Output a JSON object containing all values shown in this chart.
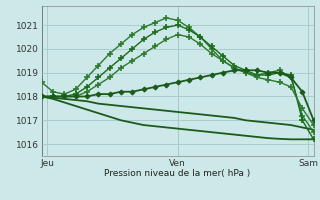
{
  "title": "Pression niveau de la mer( hPa )",
  "ylim": [
    1015.5,
    1021.8
  ],
  "yticks": [
    1016,
    1017,
    1018,
    1019,
    1020,
    1021
  ],
  "bg_color": "#cce8e8",
  "grid_color": "#aacccc",
  "series": [
    {
      "x": [
        0,
        1,
        2,
        3,
        4,
        5,
        6,
        7,
        8,
        9,
        10,
        11,
        12,
        13,
        14,
        15,
        16,
        17,
        18,
        19,
        20,
        21,
        22,
        23,
        24
      ],
      "y": [
        1018.6,
        1018.2,
        1018.1,
        1018.3,
        1018.8,
        1019.3,
        1019.8,
        1020.2,
        1020.6,
        1020.9,
        1021.1,
        1021.3,
        1021.2,
        1020.9,
        1020.5,
        1020.0,
        1019.5,
        1019.2,
        1019.0,
        1018.9,
        1019.0,
        1019.1,
        1018.8,
        1017.2,
        1016.5
      ],
      "marker": "+",
      "lw": 1.0,
      "color": "#2d7a2d",
      "ms": 4,
      "mew": 1.2
    },
    {
      "x": [
        0,
        1,
        2,
        3,
        4,
        5,
        6,
        7,
        8,
        9,
        10,
        11,
        12,
        13,
        14,
        15,
        16,
        17,
        18,
        19,
        20,
        21,
        22,
        23,
        24
      ],
      "y": [
        1018.0,
        1018.0,
        1018.0,
        1018.1,
        1018.4,
        1018.8,
        1019.2,
        1019.6,
        1020.0,
        1020.4,
        1020.7,
        1020.9,
        1021.0,
        1020.8,
        1020.5,
        1020.1,
        1019.7,
        1019.3,
        1019.1,
        1018.9,
        1018.9,
        1019.0,
        1018.9,
        1017.0,
        1016.2
      ],
      "marker": "+",
      "lw": 1.0,
      "color": "#1a6b1a",
      "ms": 4,
      "mew": 1.2
    },
    {
      "x": [
        0,
        1,
        2,
        3,
        4,
        5,
        6,
        7,
        8,
        9,
        10,
        11,
        12,
        13,
        14,
        15,
        16,
        17,
        18,
        19,
        20,
        21,
        22,
        23,
        24
      ],
      "y": [
        1018.0,
        1018.0,
        1018.0,
        1018.0,
        1018.2,
        1018.5,
        1018.8,
        1019.2,
        1019.5,
        1019.8,
        1020.1,
        1020.4,
        1020.6,
        1020.5,
        1020.2,
        1019.8,
        1019.5,
        1019.2,
        1019.0,
        1018.8,
        1018.7,
        1018.6,
        1018.4,
        1017.5,
        1016.8
      ],
      "marker": "+",
      "lw": 1.0,
      "color": "#2d7a2d",
      "ms": 4,
      "mew": 1.2
    },
    {
      "x": [
        0,
        1,
        2,
        3,
        4,
        5,
        6,
        7,
        8,
        9,
        10,
        11,
        12,
        13,
        14,
        15,
        16,
        17,
        18,
        19,
        20,
        21,
        22,
        23,
        24
      ],
      "y": [
        1018.0,
        1018.0,
        1018.0,
        1018.0,
        1018.0,
        1018.1,
        1018.1,
        1018.2,
        1018.2,
        1018.3,
        1018.4,
        1018.5,
        1018.6,
        1018.7,
        1018.8,
        1018.9,
        1019.0,
        1019.1,
        1019.1,
        1019.1,
        1019.0,
        1019.0,
        1018.8,
        1018.2,
        1017.0
      ],
      "marker": "D",
      "lw": 1.3,
      "color": "#1a5a1a",
      "ms": 2.5,
      "mew": 0.8
    },
    {
      "x": [
        0,
        1,
        2,
        3,
        4,
        5,
        6,
        7,
        8,
        9,
        10,
        11,
        12,
        13,
        14,
        15,
        16,
        17,
        18,
        19,
        20,
        21,
        22,
        23,
        24
      ],
      "y": [
        1018.0,
        1017.95,
        1017.9,
        1017.85,
        1017.8,
        1017.7,
        1017.65,
        1017.6,
        1017.55,
        1017.5,
        1017.45,
        1017.4,
        1017.35,
        1017.3,
        1017.25,
        1017.2,
        1017.15,
        1017.1,
        1017.0,
        1016.95,
        1016.9,
        1016.85,
        1016.8,
        1016.7,
        1016.6
      ],
      "marker": null,
      "lw": 1.3,
      "color": "#1a5a1a",
      "ms": 0,
      "mew": 0
    },
    {
      "x": [
        0,
        1,
        2,
        3,
        4,
        5,
        6,
        7,
        8,
        9,
        10,
        11,
        12,
        13,
        14,
        15,
        16,
        17,
        18,
        19,
        20,
        21,
        22,
        23,
        24
      ],
      "y": [
        1018.0,
        1017.9,
        1017.75,
        1017.6,
        1017.45,
        1017.3,
        1017.15,
        1017.0,
        1016.9,
        1016.8,
        1016.75,
        1016.7,
        1016.65,
        1016.6,
        1016.55,
        1016.5,
        1016.45,
        1016.4,
        1016.35,
        1016.3,
        1016.25,
        1016.22,
        1016.2,
        1016.2,
        1016.2
      ],
      "marker": null,
      "lw": 1.3,
      "color": "#1a5a1a",
      "ms": 0,
      "mew": 0
    }
  ],
  "xtick_positions": [
    0.5,
    12,
    23.5
  ],
  "xtick_labels": [
    "Jeu",
    "Ven",
    "Sam"
  ],
  "vline_positions": [
    0,
    12,
    24
  ]
}
